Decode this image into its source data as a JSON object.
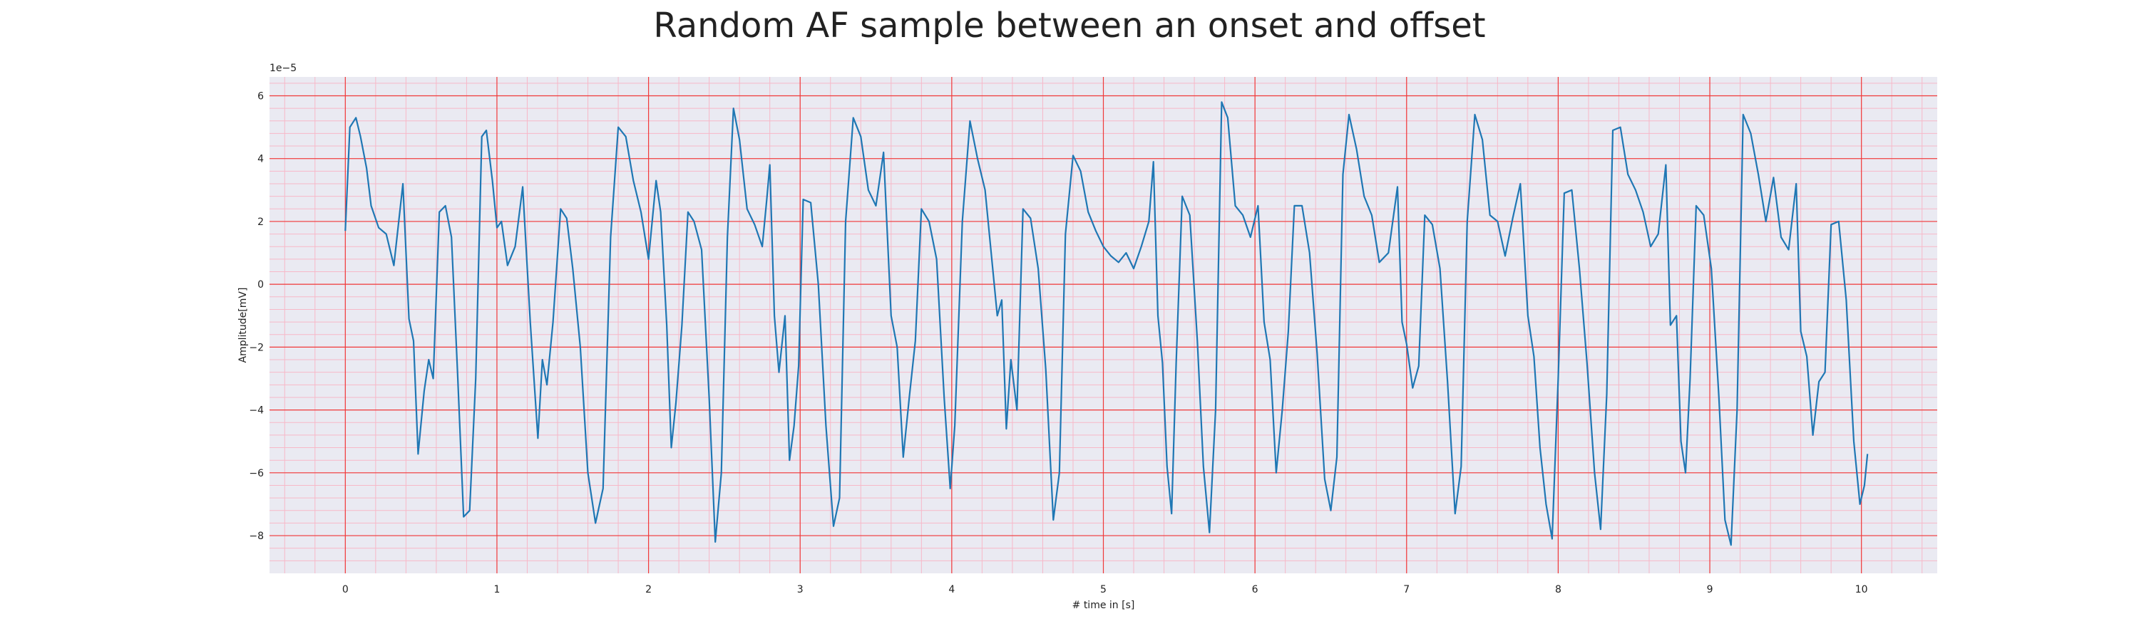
{
  "chart_data": {
    "type": "line",
    "title": "Random AF sample between an onset and offset",
    "xlabel": "# time in [s]",
    "ylabel": "Amplitude[mV]",
    "y_scale_label": "1e−5",
    "xlim": [
      -0.5,
      10.5
    ],
    "ylim": [
      -9.2,
      6.6
    ],
    "x_ticks": [
      0,
      1,
      2,
      3,
      4,
      5,
      6,
      7,
      8,
      9,
      10
    ],
    "y_ticks": [
      -8,
      -6,
      -4,
      -2,
      0,
      2,
      4,
      6
    ],
    "grid": true,
    "minor_grid": true,
    "colors": {
      "background": "#eaeaf2",
      "major_grid": "#f03a3a",
      "minor_grid": "#f7b8c8",
      "line": "#1f77b4"
    },
    "series": [
      {
        "points": [
          [
            0.0,
            1.7
          ],
          [
            0.03,
            5.0
          ],
          [
            0.07,
            5.3
          ],
          [
            0.1,
            4.7
          ],
          [
            0.14,
            3.7
          ],
          [
            0.17,
            2.5
          ],
          [
            0.22,
            1.8
          ],
          [
            0.27,
            1.6
          ],
          [
            0.32,
            0.6
          ],
          [
            0.38,
            3.2
          ],
          [
            0.42,
            -1.1
          ],
          [
            0.45,
            -1.8
          ],
          [
            0.48,
            -5.4
          ],
          [
            0.52,
            -3.4
          ],
          [
            0.55,
            -2.4
          ],
          [
            0.58,
            -3.0
          ],
          [
            0.62,
            2.3
          ],
          [
            0.66,
            2.5
          ],
          [
            0.7,
            1.5
          ],
          [
            0.74,
            -2.8
          ],
          [
            0.78,
            -7.4
          ],
          [
            0.82,
            -7.2
          ],
          [
            0.86,
            -3.0
          ],
          [
            0.9,
            4.7
          ],
          [
            0.93,
            4.9
          ],
          [
            0.97,
            3.3
          ],
          [
            1.0,
            1.8
          ],
          [
            1.03,
            2.0
          ],
          [
            1.07,
            0.6
          ],
          [
            1.12,
            1.2
          ],
          [
            1.17,
            3.1
          ],
          [
            1.22,
            -1.2
          ],
          [
            1.27,
            -4.9
          ],
          [
            1.3,
            -2.4
          ],
          [
            1.33,
            -3.2
          ],
          [
            1.37,
            -1.2
          ],
          [
            1.42,
            2.4
          ],
          [
            1.46,
            2.1
          ],
          [
            1.5,
            0.5
          ],
          [
            1.55,
            -2.0
          ],
          [
            1.6,
            -6.0
          ],
          [
            1.65,
            -7.6
          ],
          [
            1.7,
            -6.5
          ],
          [
            1.75,
            1.5
          ],
          [
            1.8,
            5.0
          ],
          [
            1.85,
            4.7
          ],
          [
            1.9,
            3.3
          ],
          [
            1.95,
            2.3
          ],
          [
            2.0,
            0.8
          ],
          [
            2.05,
            3.3
          ],
          [
            2.08,
            2.3
          ],
          [
            2.12,
            -1.3
          ],
          [
            2.15,
            -5.2
          ],
          [
            2.18,
            -3.8
          ],
          [
            2.22,
            -1.3
          ],
          [
            2.26,
            2.3
          ],
          [
            2.3,
            2.0
          ],
          [
            2.35,
            1.1
          ],
          [
            2.4,
            -3.6
          ],
          [
            2.44,
            -8.2
          ],
          [
            2.48,
            -6.0
          ],
          [
            2.52,
            1.5
          ],
          [
            2.56,
            5.6
          ],
          [
            2.6,
            4.6
          ],
          [
            2.65,
            2.4
          ],
          [
            2.7,
            1.9
          ],
          [
            2.75,
            1.2
          ],
          [
            2.78,
            2.7
          ],
          [
            2.8,
            3.8
          ],
          [
            2.83,
            -1.0
          ],
          [
            2.86,
            -2.8
          ],
          [
            2.9,
            -1.0
          ],
          [
            2.93,
            -5.6
          ],
          [
            2.96,
            -4.5
          ],
          [
            2.99,
            -2.6
          ],
          [
            3.02,
            2.7
          ],
          [
            3.07,
            2.6
          ],
          [
            3.12,
            0.0
          ],
          [
            3.17,
            -4.5
          ],
          [
            3.22,
            -7.7
          ],
          [
            3.26,
            -6.8
          ],
          [
            3.3,
            2.0
          ],
          [
            3.35,
            5.3
          ],
          [
            3.4,
            4.7
          ],
          [
            3.45,
            3.0
          ],
          [
            3.5,
            2.5
          ],
          [
            3.55,
            4.2
          ],
          [
            3.6,
            -1.0
          ],
          [
            3.64,
            -2.0
          ],
          [
            3.68,
            -5.5
          ],
          [
            3.72,
            -3.6
          ],
          [
            3.76,
            -1.8
          ],
          [
            3.8,
            2.4
          ],
          [
            3.85,
            2.0
          ],
          [
            3.9,
            0.8
          ],
          [
            3.95,
            -3.6
          ],
          [
            3.99,
            -6.5
          ],
          [
            4.02,
            -4.5
          ],
          [
            4.07,
            2.0
          ],
          [
            4.12,
            5.2
          ],
          [
            4.17,
            4.0
          ],
          [
            4.22,
            3.0
          ],
          [
            4.27,
            0.5
          ],
          [
            4.3,
            -1.0
          ],
          [
            4.33,
            -0.5
          ],
          [
            4.36,
            -4.6
          ],
          [
            4.39,
            -2.4
          ],
          [
            4.43,
            -4.0
          ],
          [
            4.47,
            2.4
          ],
          [
            4.52,
            2.1
          ],
          [
            4.57,
            0.5
          ],
          [
            4.62,
            -2.7
          ],
          [
            4.67,
            -7.5
          ],
          [
            4.71,
            -6.0
          ],
          [
            4.75,
            1.6
          ],
          [
            4.8,
            4.1
          ],
          [
            4.85,
            3.6
          ],
          [
            4.9,
            2.3
          ],
          [
            4.95,
            1.7
          ],
          [
            5.0,
            1.2
          ],
          [
            5.05,
            0.9
          ],
          [
            5.1,
            0.7
          ],
          [
            5.15,
            1.0
          ],
          [
            5.2,
            0.5
          ],
          [
            5.25,
            1.2
          ],
          [
            5.3,
            2.0
          ],
          [
            5.33,
            3.9
          ],
          [
            5.36,
            -1.0
          ],
          [
            5.39,
            -2.5
          ],
          [
            5.42,
            -5.8
          ],
          [
            5.45,
            -7.3
          ],
          [
            5.48,
            -2.5
          ],
          [
            5.52,
            2.8
          ],
          [
            5.57,
            2.2
          ],
          [
            5.62,
            -1.8
          ],
          [
            5.66,
            -5.8
          ],
          [
            5.7,
            -7.9
          ],
          [
            5.74,
            -4.0
          ],
          [
            5.78,
            5.8
          ],
          [
            5.82,
            5.3
          ],
          [
            5.87,
            2.5
          ],
          [
            5.92,
            2.2
          ],
          [
            5.97,
            1.5
          ],
          [
            6.02,
            2.5
          ],
          [
            6.06,
            -1.2
          ],
          [
            6.1,
            -2.4
          ],
          [
            6.14,
            -6.0
          ],
          [
            6.18,
            -4.0
          ],
          [
            6.22,
            -1.5
          ],
          [
            6.26,
            2.5
          ],
          [
            6.31,
            2.5
          ],
          [
            6.36,
            1.0
          ],
          [
            6.41,
            -2.2
          ],
          [
            6.46,
            -6.2
          ],
          [
            6.5,
            -7.2
          ],
          [
            6.54,
            -5.5
          ],
          [
            6.58,
            3.5
          ],
          [
            6.62,
            5.4
          ],
          [
            6.67,
            4.3
          ],
          [
            6.72,
            2.8
          ],
          [
            6.77,
            2.2
          ],
          [
            6.82,
            0.7
          ],
          [
            6.88,
            1.0
          ],
          [
            6.94,
            3.1
          ],
          [
            6.97,
            -1.2
          ],
          [
            7.0,
            -1.9
          ],
          [
            7.04,
            -3.3
          ],
          [
            7.08,
            -2.6
          ],
          [
            7.12,
            2.2
          ],
          [
            7.17,
            1.9
          ],
          [
            7.22,
            0.5
          ],
          [
            7.27,
            -3.1
          ],
          [
            7.32,
            -7.3
          ],
          [
            7.36,
            -5.8
          ],
          [
            7.4,
            2.0
          ],
          [
            7.45,
            5.4
          ],
          [
            7.5,
            4.6
          ],
          [
            7.55,
            2.2
          ],
          [
            7.6,
            2.0
          ],
          [
            7.65,
            0.9
          ],
          [
            7.7,
            2.1
          ],
          [
            7.75,
            3.2
          ],
          [
            7.8,
            -1.0
          ],
          [
            7.84,
            -2.3
          ],
          [
            7.88,
            -5.2
          ],
          [
            7.92,
            -7.0
          ],
          [
            7.96,
            -8.1
          ],
          [
            8.0,
            -3.0
          ],
          [
            8.04,
            2.9
          ],
          [
            8.09,
            3.0
          ],
          [
            8.14,
            0.5
          ],
          [
            8.19,
            -2.5
          ],
          [
            8.24,
            -6.0
          ],
          [
            8.28,
            -7.8
          ],
          [
            8.32,
            -3.5
          ],
          [
            8.36,
            4.9
          ],
          [
            8.41,
            5.0
          ],
          [
            8.46,
            3.5
          ],
          [
            8.51,
            3.0
          ],
          [
            8.56,
            2.3
          ],
          [
            8.61,
            1.2
          ],
          [
            8.66,
            1.6
          ],
          [
            8.71,
            3.8
          ],
          [
            8.74,
            -1.3
          ],
          [
            8.78,
            -1.0
          ],
          [
            8.81,
            -5.0
          ],
          [
            8.84,
            -6.0
          ],
          [
            8.87,
            -3.0
          ],
          [
            8.91,
            2.5
          ],
          [
            8.96,
            2.2
          ],
          [
            9.01,
            0.5
          ],
          [
            9.06,
            -3.6
          ],
          [
            9.1,
            -7.5
          ],
          [
            9.14,
            -8.3
          ],
          [
            9.18,
            -4.0
          ],
          [
            9.22,
            5.4
          ],
          [
            9.27,
            4.8
          ],
          [
            9.32,
            3.5
          ],
          [
            9.37,
            2.0
          ],
          [
            9.42,
            3.4
          ],
          [
            9.47,
            1.5
          ],
          [
            9.52,
            1.1
          ],
          [
            9.57,
            3.2
          ],
          [
            9.6,
            -1.5
          ],
          [
            9.64,
            -2.3
          ],
          [
            9.68,
            -4.8
          ],
          [
            9.72,
            -3.1
          ],
          [
            9.76,
            -2.8
          ],
          [
            9.8,
            1.9
          ],
          [
            9.85,
            2.0
          ],
          [
            9.9,
            -0.5
          ],
          [
            9.95,
            -5.0
          ],
          [
            9.99,
            -7.0
          ],
          [
            10.02,
            -6.4
          ],
          [
            10.04,
            -5.4
          ]
        ]
      }
    ]
  }
}
